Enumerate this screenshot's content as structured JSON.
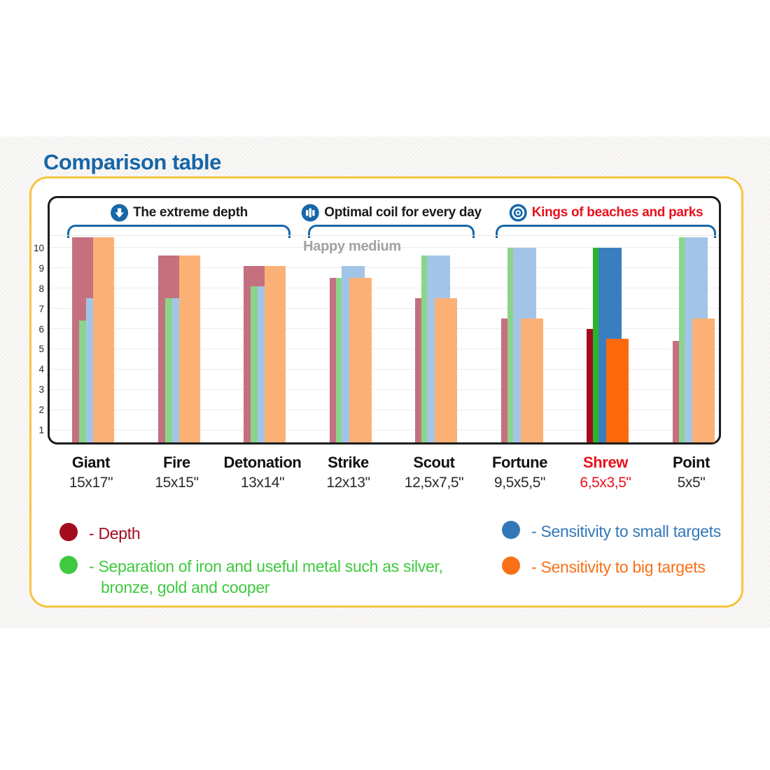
{
  "page": {
    "title": "Comparison table"
  },
  "chart_data": {
    "type": "bar",
    "title": "Comparison table",
    "annotation": "Happy medium",
    "ylim": [
      0,
      10.5
    ],
    "yticks": [
      1,
      2,
      3,
      4,
      5,
      6,
      7,
      8,
      9,
      10
    ],
    "grid": true,
    "legend_position": "bottom",
    "group_headers": [
      {
        "label": "The extreme depth",
        "icon": "arrow-down-icon",
        "label_color": "#1a1a1a",
        "groups": [
          "Giant",
          "Fire",
          "Detonation"
        ]
      },
      {
        "label": "Optimal coil for every day",
        "icon": "bar-chart-icon",
        "label_color": "#1a1a1a",
        "groups": [
          "Strike",
          "Scout"
        ]
      },
      {
        "label": "Kings of beaches and parks",
        "icon": "bullseye-icon",
        "label_color": "#e8111c",
        "groups": [
          "Fortune",
          "Shrew",
          "Point"
        ]
      }
    ],
    "categories": [
      {
        "name": "Giant",
        "size": "15x17\"",
        "style": "depth",
        "highlight": false
      },
      {
        "name": "Fire",
        "size": "15x15\"",
        "style": "depth",
        "highlight": false
      },
      {
        "name": "Detonation",
        "size": "13x14\"",
        "style": "depth",
        "highlight": false
      },
      {
        "name": "Strike",
        "size": "12x13\"",
        "style": "sensitivity",
        "highlight": false
      },
      {
        "name": "Scout",
        "size": "12,5x7,5\"",
        "style": "sensitivity",
        "highlight": false
      },
      {
        "name": "Fortune",
        "size": "9,5x5,5\"",
        "style": "sensitivity",
        "highlight": false
      },
      {
        "name": "Shrew",
        "size": "6,5x3,5\"",
        "style": "sensitivity",
        "highlight": true
      },
      {
        "name": "Point",
        "size": "5x5\"",
        "style": "sensitivity",
        "highlight": false
      }
    ],
    "series": [
      {
        "key": "depth",
        "name": "Depth",
        "color": "#c4707f",
        "highlight_color": "#a30c1e",
        "values": [
          10.5,
          9.6,
          9.1,
          8.5,
          7.5,
          6.5,
          6.0,
          5.4
        ]
      },
      {
        "key": "separation",
        "name": "Separation of iron and useful metal",
        "color": "#8bd48b",
        "highlight_color": "#2cb32c",
        "values": [
          6.4,
          7.5,
          8.1,
          8.5,
          9.6,
          10.0,
          10.0,
          10.5
        ]
      },
      {
        "key": "small",
        "name": "Sensitivity to small targets",
        "color": "#a2c5e7",
        "highlight_color": "#3b7ec0",
        "values": [
          7.5,
          7.5,
          8.1,
          9.1,
          9.6,
          10.0,
          10.0,
          10.5
        ]
      },
      {
        "key": "big",
        "name": "Sensitivity to big targets",
        "color": "#fbb176",
        "highlight_color": "#fd6a0d",
        "values": [
          10.5,
          9.6,
          9.1,
          8.5,
          7.5,
          6.5,
          5.5,
          6.5
        ]
      }
    ],
    "clipped_at_top_value": 10.5
  },
  "legend": [
    {
      "label": "- Depth",
      "color": "#a30c1e"
    },
    {
      "label": "- Separation of iron and useful metal such as silver, bronze, gold and cooper",
      "color": "#3ec93e"
    },
    {
      "label": "- Sensitivity to small targets",
      "color": "#3377b8"
    },
    {
      "label": "- Sensitivity to big targets",
      "color": "#f97016"
    }
  ],
  "colors": {
    "title_blue": "#1766a8",
    "bracket_blue": "#1766a8",
    "highlight_red": "#e8111c",
    "card_border_yellow": "#f8c43f"
  }
}
